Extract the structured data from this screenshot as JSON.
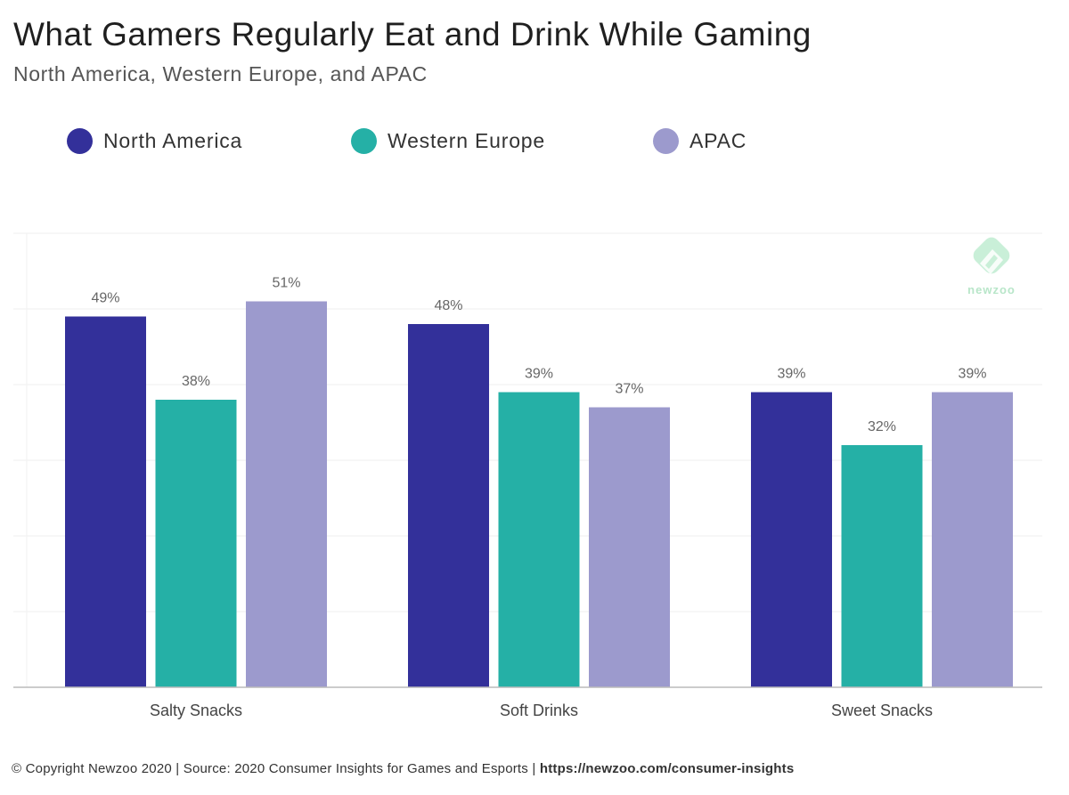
{
  "title": "What Gamers Regularly Eat and Drink While Gaming",
  "subtitle": "North America, Western Europe, and APAC",
  "logo": {
    "text": "newzoo",
    "icon": "newzoo-logo-icon"
  },
  "footer": {
    "copyright": "© Copyright Newzoo 2020 | Source: 2020 Consumer Insights for Games and Esports | ",
    "url": "https://newzoo.com/consumer-insights"
  },
  "chart_data": {
    "type": "bar",
    "categories": [
      "Salty Snacks",
      "Soft Drinks",
      "Sweet Snacks"
    ],
    "series": [
      {
        "name": "North America",
        "color": "#33309a",
        "values": [
          49,
          48,
          39
        ],
        "labels": [
          "49%",
          "48%",
          "39%"
        ]
      },
      {
        "name": "Western Europe",
        "color": "#25b0a6",
        "values": [
          38,
          39,
          32
        ],
        "labels": [
          "38%",
          "39%",
          "32%"
        ]
      },
      {
        "name": "APAC",
        "color": "#9c9acd",
        "values": [
          51,
          37,
          39
        ],
        "labels": [
          "51%",
          "37%",
          "39%"
        ]
      }
    ],
    "ylim": [
      0,
      60
    ],
    "grid": true,
    "legend": "top-left",
    "unit": "%"
  }
}
